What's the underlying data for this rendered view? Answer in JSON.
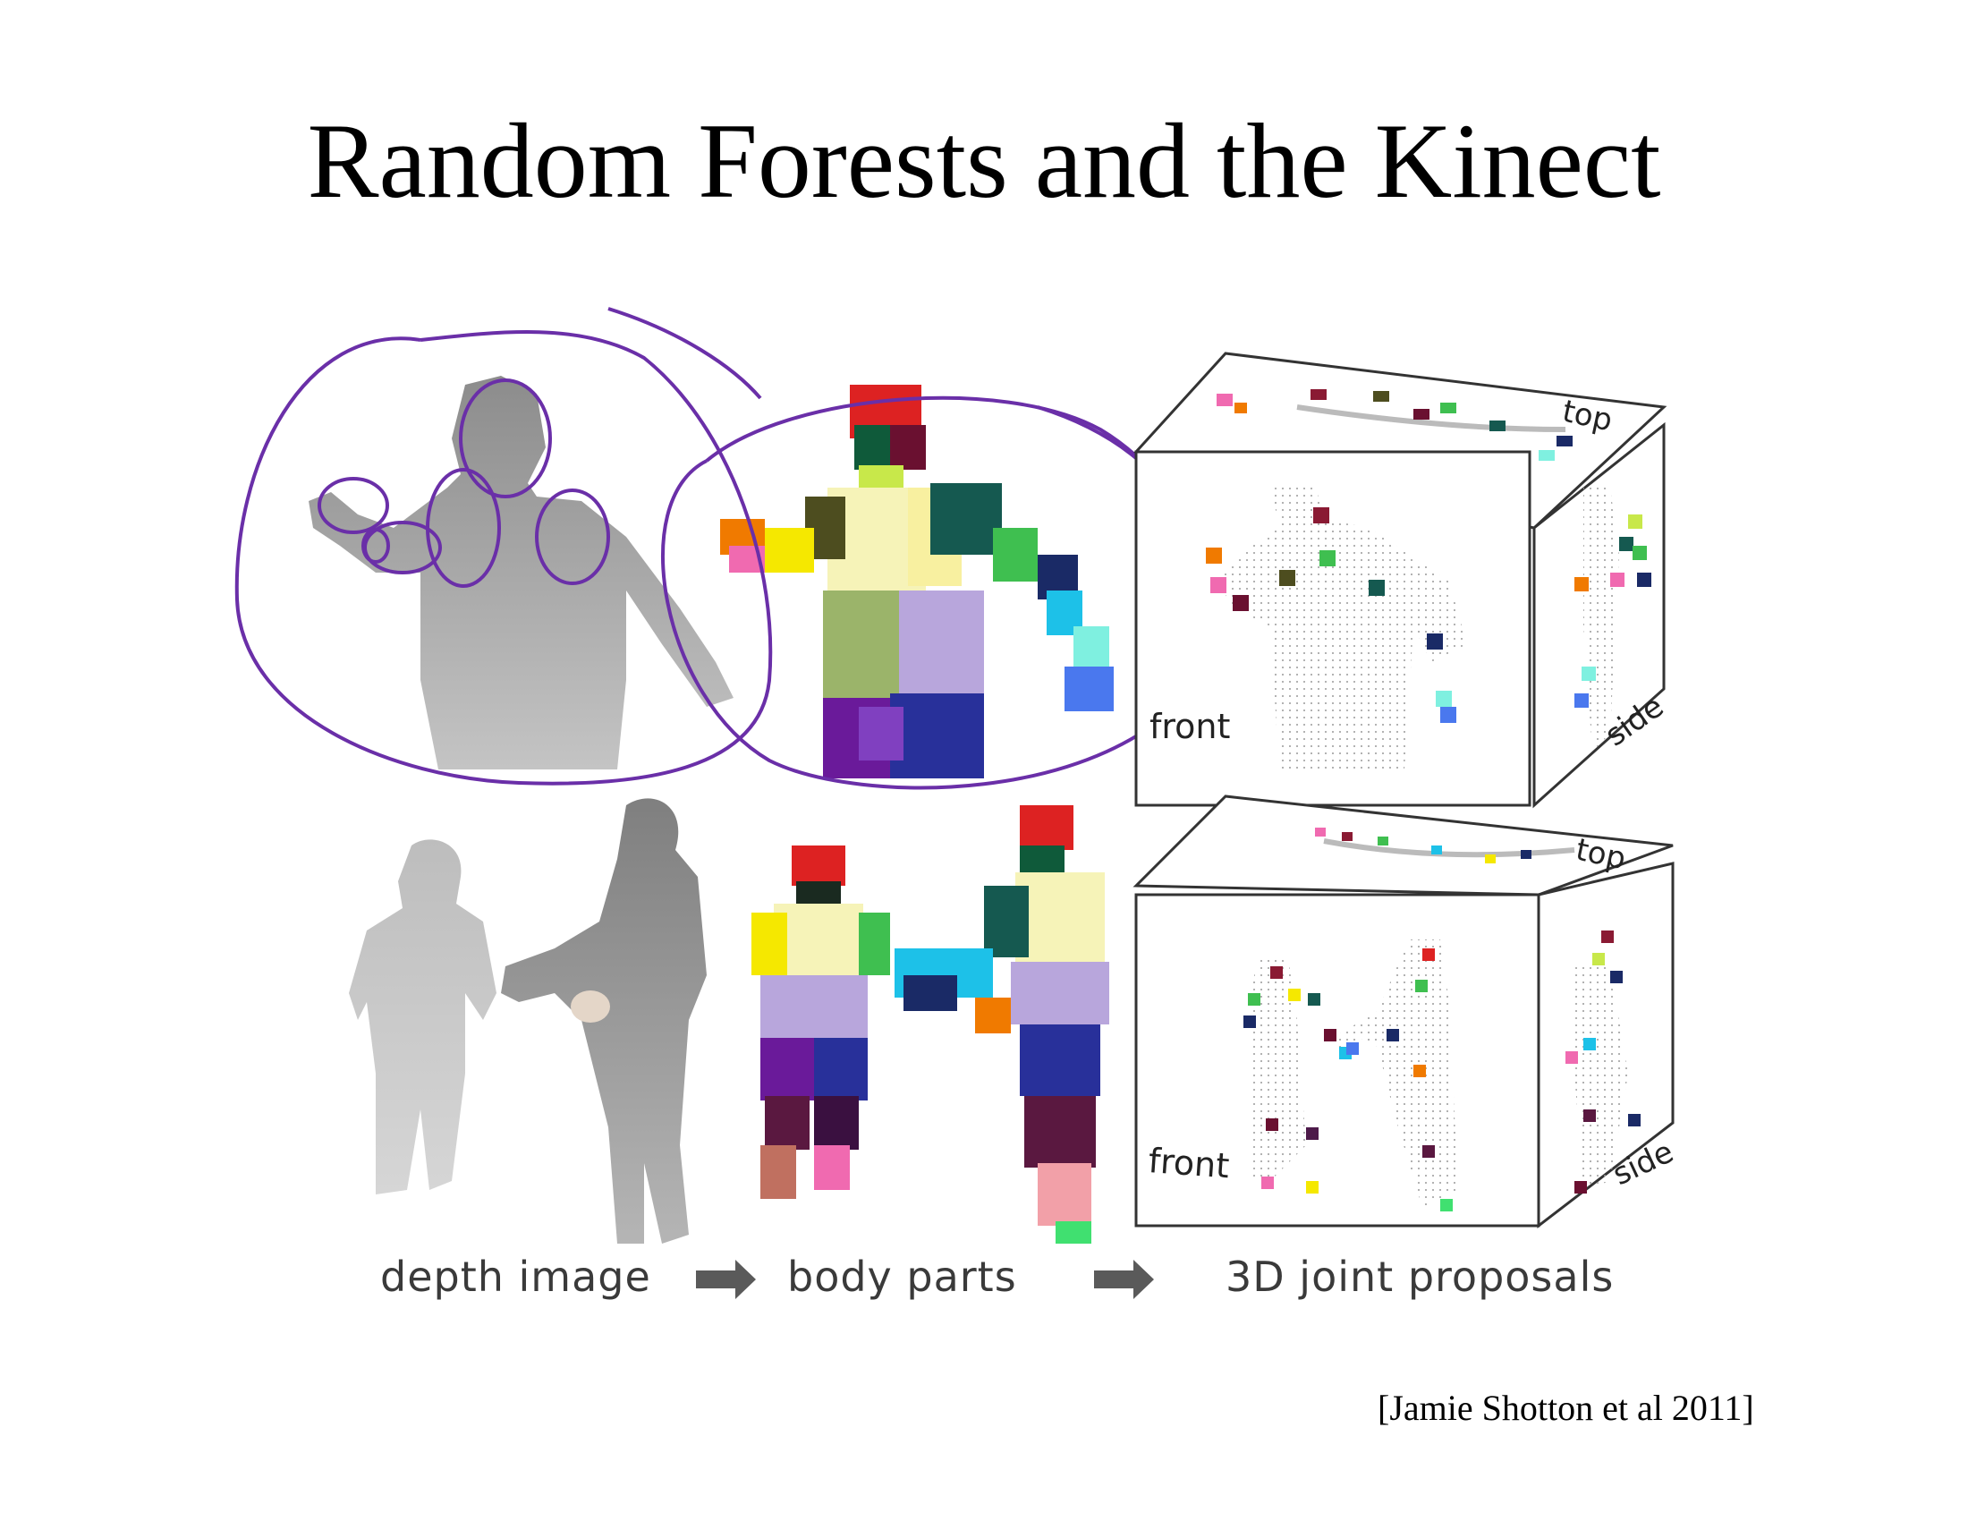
{
  "slide": {
    "title": "Random Forests and the Kinect",
    "citation": "[Jamie Shotton et al 2011]"
  },
  "pipeline": {
    "steps": [
      {
        "label": "depth image"
      },
      {
        "label": "body parts"
      },
      {
        "label": "3D joint proposals"
      }
    ]
  },
  "views": {
    "front": "front",
    "top": "top",
    "side": "side"
  },
  "colors": {
    "annotation_ink": "#6a2fa8",
    "depth_gray": "#9a9a9a",
    "box_edge": "#333333",
    "arrow": "#5a5a5a"
  }
}
